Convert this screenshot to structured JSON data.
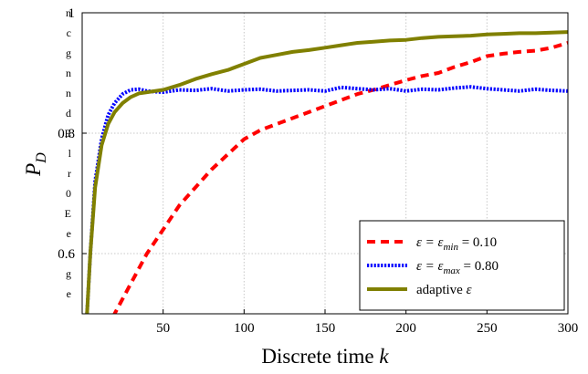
{
  "clipped_text": {
    "fragments": [
      "n",
      "c",
      "g",
      "n",
      "n",
      "d",
      "E",
      "l",
      "r",
      "0",
      "E",
      "e",
      "t",
      "g",
      "e"
    ]
  },
  "chart_data": {
    "type": "line",
    "title": "",
    "xlabel": "Discrete time k",
    "ylabel": "P_D",
    "xlim": [
      0,
      300
    ],
    "ylim": [
      0.5,
      1.0
    ],
    "xticks": [
      50,
      100,
      150,
      200,
      250,
      300
    ],
    "yticks": [
      0.6,
      0.8,
      1.0
    ],
    "ytick_labels": [
      "0.6",
      "0.8",
      "1"
    ],
    "grid": true,
    "legend_position": "bottom-right",
    "series": [
      {
        "name": "ε = ε_min = 0.10",
        "color": "#ff0000",
        "dash": "dashed",
        "x": [
          0,
          15,
          20,
          30,
          40,
          50,
          60,
          70,
          80,
          90,
          100,
          110,
          120,
          130,
          140,
          150,
          160,
          170,
          180,
          190,
          200,
          210,
          220,
          230,
          240,
          250,
          260,
          270,
          280,
          290,
          300
        ],
        "y": [
          0.45,
          0.48,
          0.5,
          0.55,
          0.6,
          0.64,
          0.68,
          0.71,
          0.74,
          0.765,
          0.79,
          0.805,
          0.815,
          0.825,
          0.835,
          0.845,
          0.855,
          0.865,
          0.872,
          0.88,
          0.888,
          0.895,
          0.9,
          0.91,
          0.918,
          0.928,
          0.932,
          0.935,
          0.937,
          0.942,
          0.95
        ]
      },
      {
        "name": "ε = ε_max = 0.80",
        "color": "#0000ff",
        "dash": "dotted",
        "x": [
          3,
          5,
          8,
          12,
          16,
          20,
          25,
          30,
          35,
          40,
          50,
          60,
          70,
          80,
          90,
          100,
          110,
          120,
          130,
          140,
          150,
          160,
          170,
          180,
          190,
          200,
          210,
          220,
          230,
          240,
          250,
          260,
          270,
          280,
          290,
          300
        ],
        "y": [
          0.5,
          0.6,
          0.72,
          0.79,
          0.83,
          0.85,
          0.865,
          0.872,
          0.873,
          0.87,
          0.868,
          0.872,
          0.871,
          0.874,
          0.87,
          0.872,
          0.873,
          0.87,
          0.871,
          0.872,
          0.87,
          0.876,
          0.874,
          0.872,
          0.874,
          0.87,
          0.873,
          0.872,
          0.875,
          0.877,
          0.874,
          0.872,
          0.87,
          0.873,
          0.871,
          0.87
        ]
      },
      {
        "name": "adaptive ε",
        "color": "#808000",
        "dash": "solid",
        "x": [
          3,
          5,
          8,
          12,
          16,
          20,
          25,
          30,
          35,
          40,
          50,
          60,
          70,
          80,
          90,
          100,
          110,
          120,
          130,
          140,
          150,
          160,
          170,
          180,
          190,
          200,
          210,
          220,
          230,
          240,
          250,
          260,
          270,
          280,
          290,
          300
        ],
        "y": [
          0.5,
          0.6,
          0.71,
          0.78,
          0.815,
          0.835,
          0.85,
          0.86,
          0.866,
          0.868,
          0.872,
          0.88,
          0.89,
          0.898,
          0.905,
          0.915,
          0.925,
          0.93,
          0.935,
          0.938,
          0.942,
          0.946,
          0.95,
          0.952,
          0.954,
          0.955,
          0.958,
          0.96,
          0.961,
          0.962,
          0.964,
          0.965,
          0.966,
          0.966,
          0.967,
          0.968
        ]
      }
    ]
  }
}
